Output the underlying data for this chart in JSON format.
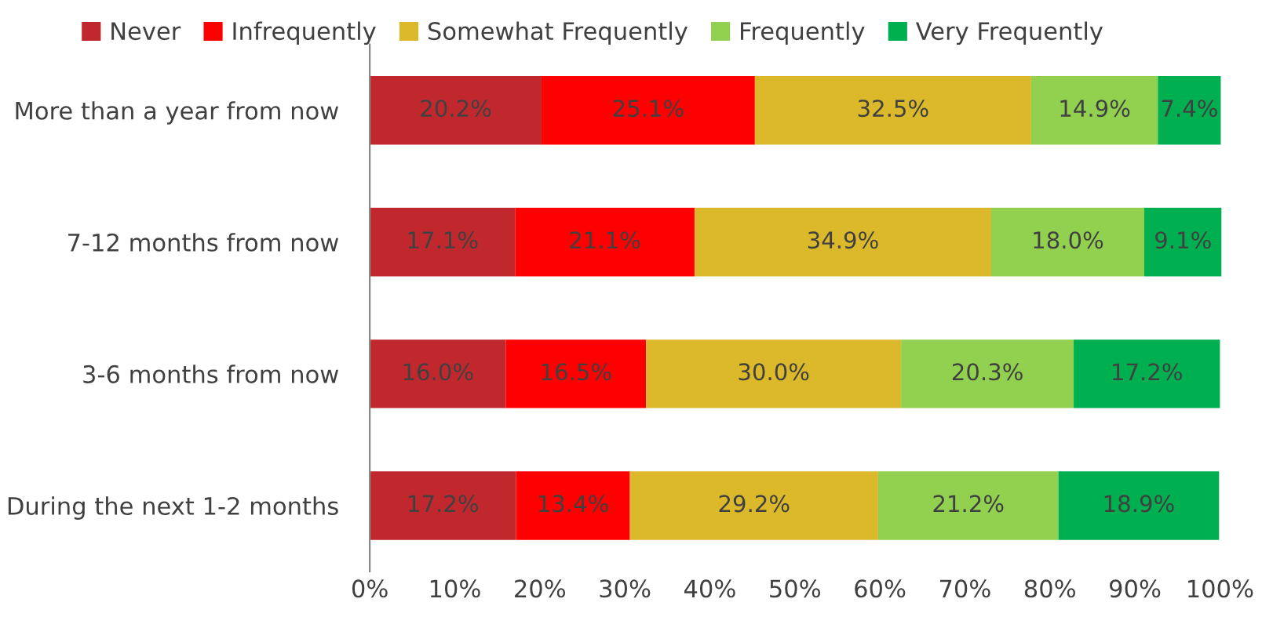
{
  "chart_data": {
    "type": "bar",
    "orientation": "horizontal",
    "stacked": true,
    "categories": [
      "More than a year from now",
      "7-12 months from now",
      "3-6 months from now",
      "During the next 1-2 months"
    ],
    "series": [
      {
        "name": "Never",
        "color": "#c0282d",
        "values": [
          20.2,
          17.1,
          16.0,
          17.2
        ],
        "value_labels": [
          "20.2%",
          "17.1%",
          "16.0%",
          "17.2%"
        ]
      },
      {
        "name": "Infrequently",
        "color": "#ff0000",
        "values": [
          25.1,
          21.1,
          16.5,
          13.4
        ],
        "value_labels": [
          "25.1%",
          "21.1%",
          "16.5%",
          "13.4%"
        ]
      },
      {
        "name": "Somewhat Frequently",
        "color": "#dbb92a",
        "values": [
          32.5,
          34.9,
          30.0,
          29.2
        ],
        "value_labels": [
          "32.5%",
          "34.9%",
          "30.0%",
          "29.2%"
        ]
      },
      {
        "name": "Frequently",
        "color": "#92d050",
        "values": [
          14.9,
          18.0,
          20.3,
          21.2
        ],
        "value_labels": [
          "14.9%",
          "18.0%",
          "20.3%",
          "21.2%"
        ]
      },
      {
        "name": "Very Frequently",
        "color": "#00b050",
        "values": [
          7.4,
          9.1,
          17.2,
          18.9
        ],
        "value_labels": [
          "7.4%",
          "9.1%",
          "17.2%",
          "18.9%"
        ]
      }
    ],
    "xlim": [
      0,
      100.2
    ],
    "xticks": [
      {
        "value": 0,
        "label": "0%"
      },
      {
        "value": 10,
        "label": "10%"
      },
      {
        "value": 20,
        "label": "20%"
      },
      {
        "value": 30,
        "label": "30%"
      },
      {
        "value": 40,
        "label": "40%"
      },
      {
        "value": 50,
        "label": "50%"
      },
      {
        "value": 60,
        "label": "60%"
      },
      {
        "value": 70,
        "label": "70%"
      },
      {
        "value": 80,
        "label": "80%"
      },
      {
        "value": 90,
        "label": "90%"
      },
      {
        "value": 100,
        "label": "100%"
      }
    ],
    "grid": false,
    "legend": "top"
  }
}
